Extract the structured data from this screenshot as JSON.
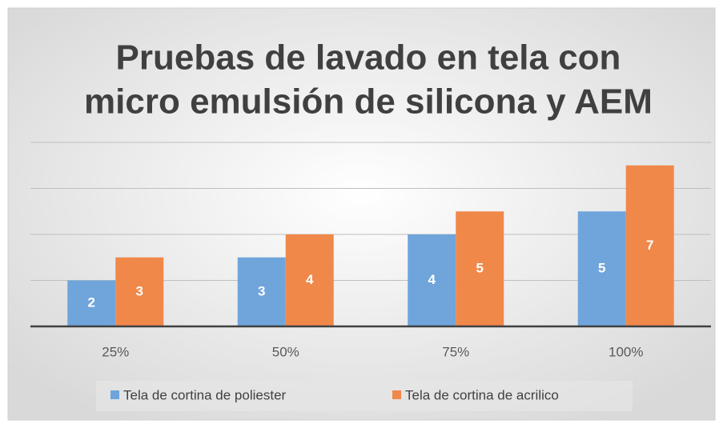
{
  "chart_data": {
    "type": "bar",
    "title": [
      "Pruebas de lavado en tela con",
      "micro emulsión de silicona y AEM"
    ],
    "categories": [
      "25%",
      "50%",
      "75%",
      "100%"
    ],
    "series": [
      {
        "name": "Tela de cortina de poliester",
        "color": "#6fa5db",
        "values": [
          2,
          3,
          4,
          5
        ]
      },
      {
        "name": "Tela de cortina de acrilico",
        "color": "#f0884a",
        "values": [
          3,
          4,
          5,
          7
        ]
      }
    ],
    "ylim": [
      0,
      8
    ],
    "yticks": [
      0,
      2,
      4,
      6,
      8
    ],
    "grid": true,
    "legend": "bottom"
  }
}
